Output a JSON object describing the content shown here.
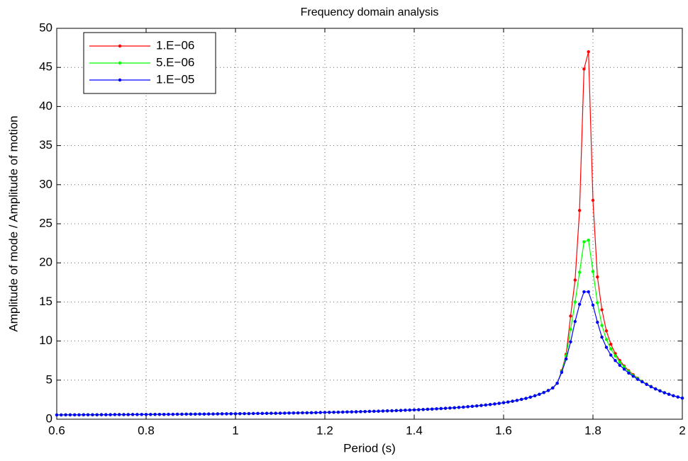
{
  "chart_data": {
    "type": "line",
    "title": "Frequency domain analysis",
    "xlabel": "Period (s)",
    "ylabel": "Amplitude of mode / Amplitude of motion",
    "x": [
      0.6,
      0.61,
      0.62,
      0.63,
      0.64,
      0.65,
      0.66,
      0.67,
      0.68,
      0.69,
      0.7,
      0.71,
      0.72,
      0.73,
      0.74,
      0.75,
      0.76,
      0.77,
      0.78,
      0.79,
      0.8,
      0.81,
      0.82,
      0.83,
      0.84,
      0.85,
      0.86,
      0.87,
      0.88,
      0.89,
      0.9,
      0.91,
      0.92,
      0.93,
      0.94,
      0.95,
      0.96,
      0.97,
      0.98,
      0.99,
      1.0,
      1.01,
      1.02,
      1.03,
      1.04,
      1.05,
      1.06,
      1.07,
      1.08,
      1.09,
      1.1,
      1.11,
      1.12,
      1.13,
      1.14,
      1.15,
      1.16,
      1.17,
      1.18,
      1.19,
      1.2,
      1.21,
      1.22,
      1.23,
      1.24,
      1.25,
      1.26,
      1.27,
      1.28,
      1.29,
      1.3,
      1.31,
      1.32,
      1.33,
      1.34,
      1.35,
      1.36,
      1.37,
      1.38,
      1.39,
      1.4,
      1.41,
      1.42,
      1.43,
      1.44,
      1.45,
      1.46,
      1.47,
      1.48,
      1.49,
      1.5,
      1.51,
      1.52,
      1.53,
      1.54,
      1.55,
      1.56,
      1.57,
      1.58,
      1.59,
      1.6,
      1.61,
      1.62,
      1.63,
      1.64,
      1.65,
      1.66,
      1.67,
      1.68,
      1.69,
      1.7,
      1.71,
      1.72,
      1.73,
      1.74,
      1.75,
      1.76,
      1.77,
      1.78,
      1.79,
      1.8,
      1.81,
      1.82,
      1.83,
      1.84,
      1.85,
      1.86,
      1.87,
      1.88,
      1.89,
      1.9,
      1.91,
      1.92,
      1.93,
      1.94,
      1.95,
      1.96,
      1.97,
      1.98,
      1.99,
      2.0
    ],
    "series": [
      {
        "name": "1.E−06",
        "color": "#ff0000",
        "values": [
          0.55,
          0.55,
          0.56,
          0.56,
          0.56,
          0.56,
          0.57,
          0.57,
          0.57,
          0.57,
          0.58,
          0.58,
          0.58,
          0.59,
          0.59,
          0.59,
          0.59,
          0.6,
          0.6,
          0.61,
          0.61,
          0.61,
          0.62,
          0.62,
          0.62,
          0.63,
          0.63,
          0.64,
          0.64,
          0.65,
          0.65,
          0.65,
          0.66,
          0.66,
          0.67,
          0.67,
          0.68,
          0.69,
          0.69,
          0.7,
          0.7,
          0.71,
          0.72,
          0.72,
          0.73,
          0.74,
          0.74,
          0.75,
          0.76,
          0.76,
          0.77,
          0.78,
          0.79,
          0.8,
          0.81,
          0.82,
          0.82,
          0.83,
          0.84,
          0.86,
          0.87,
          0.88,
          0.89,
          0.9,
          0.91,
          0.93,
          0.94,
          0.95,
          0.97,
          0.98,
          1.0,
          1.01,
          1.03,
          1.05,
          1.07,
          1.08,
          1.1,
          1.13,
          1.15,
          1.17,
          1.19,
          1.22,
          1.24,
          1.27,
          1.3,
          1.33,
          1.36,
          1.4,
          1.43,
          1.47,
          1.51,
          1.55,
          1.6,
          1.65,
          1.7,
          1.76,
          1.82,
          1.88,
          1.95,
          2.03,
          2.11,
          2.2,
          2.3,
          2.41,
          2.54,
          2.67,
          2.82,
          3.0,
          3.19,
          3.41,
          3.67,
          4.0,
          4.6,
          6.2,
          8.3,
          13.2,
          17.8,
          26.7,
          44.8,
          47.0,
          28.0,
          18.2,
          14.0,
          11.3,
          9.6,
          8.4,
          7.5,
          6.8,
          6.2,
          5.7,
          5.25,
          4.85,
          4.5,
          4.2,
          3.9,
          3.65,
          3.4,
          3.2,
          3.0,
          2.85,
          2.7
        ]
      },
      {
        "name": "5.E−06",
        "color": "#00ff00",
        "values": [
          0.55,
          0.55,
          0.56,
          0.56,
          0.56,
          0.56,
          0.57,
          0.57,
          0.57,
          0.57,
          0.58,
          0.58,
          0.58,
          0.59,
          0.59,
          0.59,
          0.59,
          0.6,
          0.6,
          0.61,
          0.61,
          0.61,
          0.62,
          0.62,
          0.62,
          0.63,
          0.63,
          0.64,
          0.64,
          0.65,
          0.65,
          0.65,
          0.66,
          0.66,
          0.67,
          0.67,
          0.68,
          0.69,
          0.69,
          0.7,
          0.7,
          0.71,
          0.72,
          0.72,
          0.73,
          0.74,
          0.74,
          0.75,
          0.76,
          0.76,
          0.77,
          0.78,
          0.79,
          0.8,
          0.81,
          0.82,
          0.82,
          0.83,
          0.84,
          0.86,
          0.87,
          0.88,
          0.89,
          0.9,
          0.91,
          0.93,
          0.94,
          0.95,
          0.97,
          0.98,
          1.0,
          1.01,
          1.03,
          1.05,
          1.07,
          1.08,
          1.1,
          1.13,
          1.15,
          1.17,
          1.19,
          1.22,
          1.24,
          1.27,
          1.3,
          1.33,
          1.36,
          1.4,
          1.43,
          1.47,
          1.51,
          1.55,
          1.6,
          1.65,
          1.7,
          1.76,
          1.82,
          1.88,
          1.95,
          2.03,
          2.11,
          2.2,
          2.3,
          2.41,
          2.54,
          2.67,
          2.82,
          3.0,
          3.19,
          3.41,
          3.67,
          4.0,
          4.6,
          6.1,
          8.1,
          11.5,
          15.0,
          18.8,
          22.7,
          22.9,
          18.9,
          14.9,
          12.0,
          10.2,
          9.0,
          8.1,
          7.3,
          6.7,
          6.1,
          5.6,
          5.2,
          4.83,
          4.48,
          4.18,
          3.89,
          3.64,
          3.4,
          3.2,
          3.0,
          2.85,
          2.7
        ]
      },
      {
        "name": "1.E−05",
        "color": "#0000ff",
        "values": [
          0.55,
          0.55,
          0.56,
          0.56,
          0.56,
          0.56,
          0.57,
          0.57,
          0.57,
          0.57,
          0.58,
          0.58,
          0.58,
          0.59,
          0.59,
          0.59,
          0.59,
          0.6,
          0.6,
          0.61,
          0.61,
          0.61,
          0.62,
          0.62,
          0.62,
          0.63,
          0.63,
          0.64,
          0.64,
          0.65,
          0.65,
          0.65,
          0.66,
          0.66,
          0.67,
          0.67,
          0.68,
          0.69,
          0.69,
          0.7,
          0.7,
          0.71,
          0.72,
          0.72,
          0.73,
          0.74,
          0.74,
          0.75,
          0.76,
          0.76,
          0.77,
          0.78,
          0.79,
          0.8,
          0.81,
          0.82,
          0.82,
          0.83,
          0.84,
          0.86,
          0.87,
          0.88,
          0.89,
          0.9,
          0.91,
          0.93,
          0.94,
          0.95,
          0.97,
          0.98,
          1.0,
          1.01,
          1.03,
          1.05,
          1.07,
          1.08,
          1.1,
          1.13,
          1.15,
          1.17,
          1.19,
          1.22,
          1.24,
          1.27,
          1.3,
          1.33,
          1.36,
          1.4,
          1.43,
          1.47,
          1.51,
          1.55,
          1.6,
          1.65,
          1.7,
          1.76,
          1.82,
          1.88,
          1.95,
          2.03,
          2.11,
          2.2,
          2.3,
          2.41,
          2.54,
          2.67,
          2.82,
          3.0,
          3.19,
          3.41,
          3.67,
          4.0,
          4.6,
          6.0,
          7.7,
          9.9,
          12.5,
          14.7,
          16.3,
          16.3,
          14.6,
          12.4,
          10.5,
          9.2,
          8.2,
          7.5,
          6.9,
          6.4,
          5.9,
          5.5,
          5.1,
          4.78,
          4.45,
          4.15,
          3.87,
          3.62,
          3.38,
          3.19,
          3.0,
          2.85,
          2.7
        ]
      }
    ],
    "xlim": [
      0.6,
      2
    ],
    "xticks": [
      0.6,
      0.8,
      1,
      1.2,
      1.4,
      1.6,
      1.8,
      2
    ],
    "ylim": [
      0,
      50
    ],
    "yticks": [
      0,
      5,
      10,
      15,
      20,
      25,
      30,
      35,
      40,
      45,
      50
    ],
    "grid": true,
    "legend": "upper-left",
    "markers": true
  }
}
